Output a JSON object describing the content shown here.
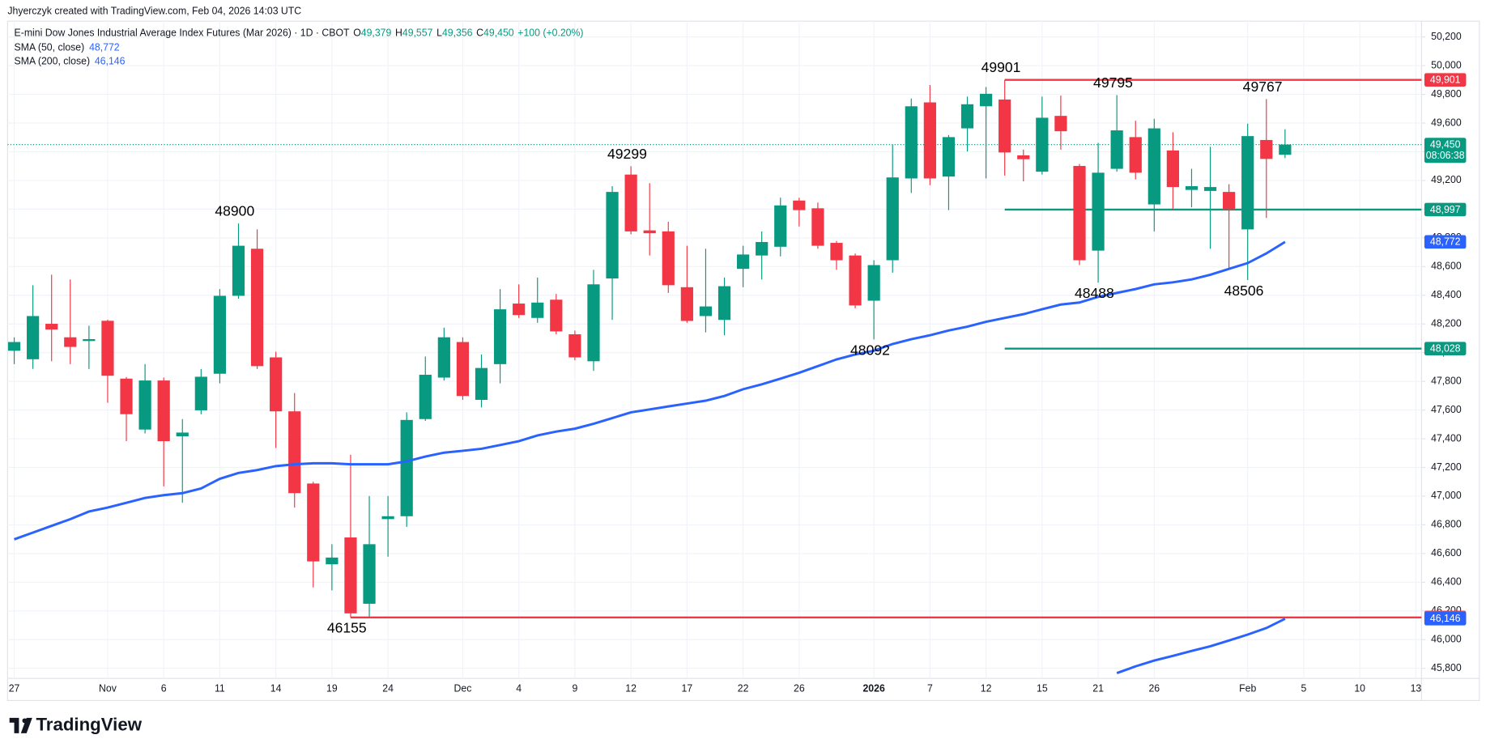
{
  "credit": "Jhyerczyk created with TradingView.com, Feb 04, 2026 14:03 UTC",
  "chart_data": {
    "type": "candlestick",
    "title": "E-mini Dow Jones Industrial Average Index Futures (Mar 2026) · 1D · CBOT",
    "header_values": [
      {
        "key": "O",
        "label": "49,379"
      },
      {
        "key": "H",
        "label": "49,557"
      },
      {
        "key": "L",
        "label": "49,356"
      },
      {
        "key": "C",
        "label": "49,450"
      }
    ],
    "change": "+100 (+0.20%)",
    "categories": [
      "27",
      null,
      null,
      null,
      null,
      "Nov",
      null,
      null,
      "6",
      null,
      null,
      "11",
      null,
      null,
      "14",
      null,
      null,
      "19",
      null,
      null,
      "24",
      null,
      null,
      null,
      "Dec",
      null,
      null,
      "4",
      null,
      null,
      "9",
      null,
      null,
      "12",
      null,
      null,
      "17",
      null,
      null,
      "22",
      null,
      null,
      "26",
      null,
      null,
      null,
      "2026",
      null,
      null,
      "7",
      null,
      null,
      "12",
      null,
      null,
      "15",
      null,
      null,
      "21",
      null,
      null,
      "26",
      null,
      null,
      null,
      null,
      "Feb",
      null,
      null,
      "5",
      null,
      null,
      "10",
      null,
      null,
      "13"
    ],
    "candles": {
      "up_color": "#089981",
      "down_color": "#f23645",
      "open": [
        48013,
        47954,
        48201,
        48107,
        48081,
        48222,
        47819,
        47464,
        47806,
        47417,
        47598,
        47853,
        48396,
        48724,
        47967,
        47591,
        47088,
        46525,
        46712,
        46250,
        46840,
        46860,
        47537,
        47826,
        48074,
        47671,
        47920,
        48342,
        48242,
        48369,
        48128,
        47940,
        48517,
        49241,
        48852,
        48845,
        48456,
        48255,
        48228,
        48584,
        48677,
        48738,
        49060,
        49006,
        48765,
        48677,
        48362,
        48644,
        49214,
        49744,
        49227,
        49563,
        49717,
        49764,
        49375,
        49261,
        49650,
        49301,
        48711,
        49281,
        49502,
        49033,
        49409,
        49134,
        49127,
        49120,
        48859,
        49482,
        49379,
        null,
        null,
        null,
        null,
        null,
        null,
        null
      ],
      "high": [
        48107,
        48470,
        48543,
        48510,
        48188,
        48230,
        47830,
        47920,
        47826,
        47537,
        47886,
        48443,
        48900,
        48859,
        48007,
        47718,
        47100,
        46665,
        47289,
        47001,
        47001,
        47584,
        47973,
        48174,
        48107,
        47987,
        48443,
        48476,
        48523,
        48409,
        48154,
        48577,
        49160,
        49299,
        49181,
        48912,
        48745,
        48724,
        48523,
        48745,
        48845,
        49080,
        49080,
        49046,
        48778,
        48691,
        48644,
        49449,
        49771,
        49865,
        49516,
        49784,
        49851,
        49901,
        49415,
        49784,
        49791,
        49315,
        49462,
        49795,
        49616,
        49630,
        49536,
        49281,
        49435,
        49174,
        49596,
        49767,
        49557,
        null,
        null,
        null,
        null,
        null,
        null,
        null
      ],
      "low": [
        47920,
        47887,
        47940,
        47920,
        47886,
        47651,
        47383,
        47437,
        47068,
        46954,
        47571,
        47786,
        48376,
        47886,
        47336,
        46920,
        46364,
        46343,
        46155,
        46160,
        46578,
        46786,
        47524,
        47806,
        47671,
        47618,
        47786,
        48242,
        48208,
        48128,
        47947,
        47873,
        48228,
        48825,
        48677,
        48416,
        48208,
        48141,
        48121,
        48456,
        48510,
        48671,
        48879,
        48724,
        48577,
        48309,
        48092,
        48557,
        49113,
        49167,
        48993,
        49402,
        49214,
        49234,
        49194,
        49241,
        49415,
        48610,
        48488,
        49261,
        49207,
        48845,
        49000,
        49013,
        48724,
        48577,
        48506,
        48939,
        49356,
        null,
        null,
        null,
        null,
        null,
        null,
        null
      ],
      "close": [
        48074,
        48255,
        48161,
        48040,
        48094,
        47839,
        47571,
        47806,
        47383,
        47443,
        47832,
        48396,
        48745,
        47906,
        47591,
        47021,
        46545,
        46572,
        46183,
        46665,
        46860,
        47531,
        47846,
        48107,
        47698,
        47893,
        48302,
        48262,
        48349,
        48148,
        47967,
        48476,
        49120,
        48845,
        48832,
        48470,
        48221,
        48322,
        48463,
        48684,
        48771,
        49026,
        48993,
        48745,
        48644,
        48329,
        48610,
        49221,
        49717,
        49214,
        49502,
        49731,
        49804,
        49395,
        49348,
        49637,
        49543,
        48644,
        49254,
        49549,
        49254,
        49563,
        49154,
        49160,
        49154,
        48999,
        49509,
        49350,
        49450,
        null,
        null,
        null,
        null,
        null,
        null,
        null
      ]
    },
    "series": [
      {
        "name": "SMA (50, close)",
        "color": "#2962ff",
        "legend_value": "48,772",
        "values": [
          46699,
          46746,
          46793,
          46840,
          46893,
          46920,
          46954,
          46987,
          47007,
          47021,
          47054,
          47121,
          47162,
          47182,
          47209,
          47222,
          47229,
          47229,
          47222,
          47222,
          47222,
          47242,
          47276,
          47303,
          47316,
          47330,
          47356,
          47383,
          47423,
          47450,
          47470,
          47504,
          47544,
          47584,
          47604,
          47625,
          47645,
          47665,
          47698,
          47745,
          47779,
          47819,
          47860,
          47906,
          47953,
          47987,
          48013,
          48060,
          48094,
          48121,
          48154,
          48181,
          48215,
          48242,
          48268,
          48302,
          48335,
          48349,
          48389,
          48416,
          48443,
          48476,
          48490,
          48510,
          48543,
          48584,
          48624,
          48691,
          48772,
          null,
          null,
          null,
          null,
          null,
          null,
          null
        ]
      },
      {
        "name": "SMA (200, close)",
        "color": "#2962ff",
        "legend_value": "46,146",
        "values": [
          null,
          null,
          null,
          null,
          null,
          null,
          null,
          null,
          null,
          null,
          null,
          null,
          null,
          null,
          null,
          null,
          null,
          null,
          null,
          null,
          null,
          null,
          null,
          null,
          null,
          null,
          null,
          null,
          null,
          null,
          null,
          null,
          null,
          null,
          null,
          null,
          null,
          null,
          null,
          null,
          null,
          null,
          null,
          null,
          null,
          null,
          null,
          null,
          null,
          null,
          null,
          null,
          null,
          null,
          null,
          null,
          null,
          null,
          null,
          45767,
          45814,
          45854,
          45887,
          45921,
          45954,
          45994,
          46035,
          46081,
          46146,
          null,
          null,
          null,
          null,
          null,
          null,
          null
        ]
      }
    ],
    "levels": [
      {
        "value": 49901,
        "label": "49,901",
        "color": "#f23645",
        "from": 53
      },
      {
        "value": 48997,
        "label": "48,997",
        "color": "#089981",
        "from": 53
      },
      {
        "value": 48028,
        "label": "48,028",
        "color": "#089981",
        "from": 53
      },
      {
        "value": 46155,
        "label": "46,155",
        "color": "#f23645",
        "from": 18
      }
    ],
    "last_price": {
      "value": 49450,
      "label": "49,450",
      "countdown": "08:06:38",
      "color": "#089981"
    },
    "annotations": [
      48900,
      49299,
      49901,
      49795,
      49767,
      48488,
      48506,
      48092,
      46155
    ],
    "ylim": [
      45730,
      50310
    ],
    "yticks": [
      {
        "value": 45800,
        "label": "45,800"
      },
      {
        "value": 46000,
        "label": "46,000"
      },
      {
        "value": 46200,
        "label": "46,200"
      },
      {
        "value": 46400,
        "label": "46,400"
      },
      {
        "value": 46600,
        "label": "46,600"
      },
      {
        "value": 46800,
        "label": "46,800"
      },
      {
        "value": 47000,
        "label": "47,000"
      },
      {
        "value": 47200,
        "label": "47,200"
      },
      {
        "value": 47400,
        "label": "47,400"
      },
      {
        "value": 47600,
        "label": "47,600"
      },
      {
        "value": 47800,
        "label": "47,800"
      },
      {
        "value": 48000,
        "label": "48,000"
      },
      {
        "value": 48200,
        "label": "48,200"
      },
      {
        "value": 48400,
        "label": "48,400"
      },
      {
        "value": 48600,
        "label": "48,600"
      },
      {
        "value": 48800,
        "label": "48,800"
      },
      {
        "value": 49000,
        "label": "49,000"
      },
      {
        "value": 49200,
        "label": "49,200"
      },
      {
        "value": 49400,
        "label": "49,400"
      },
      {
        "value": 49600,
        "label": "49,600"
      },
      {
        "value": 49800,
        "label": "49,800"
      },
      {
        "value": 50000,
        "label": "50,000"
      },
      {
        "value": 50200,
        "label": "50,200"
      }
    ],
    "grid": true
  },
  "brand": "TradingView"
}
